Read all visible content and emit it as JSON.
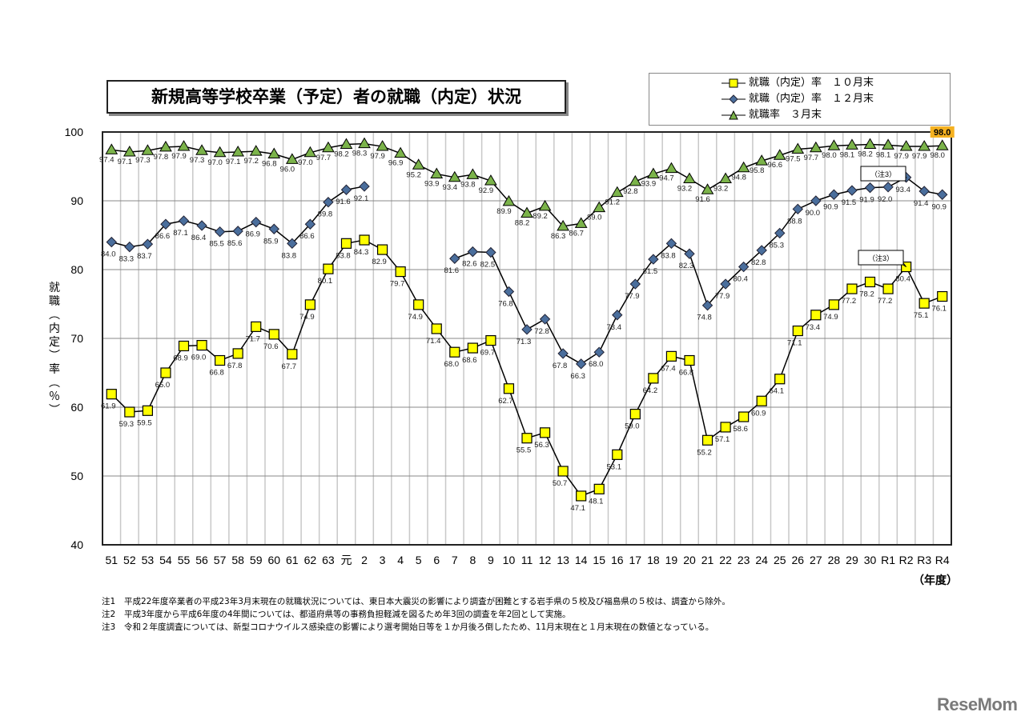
{
  "title": "新規高等学校卒業（予定）者の就職（内定）状況",
  "legend": [
    {
      "label": "就職（内定）率　１０月末",
      "marker": "square",
      "color": "#ffff00"
    },
    {
      "label": "就職（内定）率　１２月末",
      "marker": "diamond",
      "color": "#4a6e9c"
    },
    {
      "label": "就職率　３月末",
      "marker": "triangle",
      "color": "#7bb34a"
    }
  ],
  "y_axis": {
    "label": "就職（内定）率（％）",
    "ticks": [
      "100",
      "90",
      "80",
      "70",
      "60",
      "50",
      "40"
    ]
  },
  "x_axis_unit": "（年度）",
  "callouts": [
    {
      "label": "（注3）",
      "target": "R2 12月末"
    },
    {
      "label": "（注3）",
      "target": "R2 10月末"
    }
  ],
  "highlight_label": "98.0",
  "notes": [
    {
      "key": "注1",
      "text": "平成22年度卒業者の平成23年3月末現在の就職状況については、東日本大震災の影響により調査が困難とする岩手県の５校及び福島県の５校は、調査から除外。"
    },
    {
      "key": "注2",
      "text": "平成3年度から平成6年度の4年間については、都道府県等の事務負担軽減を図るため年3回の調査を年2回として実施。"
    },
    {
      "key": "注3",
      "text": "令和２年度調査については、新型コロナウイルス感染症の影響により選考開始日等を１か月後ろ倒したため、11月末現在と１月末現在の数値となっている。"
    }
  ],
  "watermark": "ReseMom",
  "chart_data": {
    "type": "line",
    "title": "新規高等学校卒業（予定）者の就職（内定）状況",
    "xlabel": "（年度）",
    "ylabel": "就職（内定）率（％）",
    "ylim": [
      40,
      100
    ],
    "yticks": [
      40,
      50,
      60,
      70,
      80,
      90,
      100
    ],
    "grid": true,
    "legend_position": "top-right",
    "categories": [
      "51",
      "52",
      "53",
      "54",
      "55",
      "56",
      "57",
      "58",
      "59",
      "60",
      "61",
      "62",
      "63",
      "元",
      "2",
      "3",
      "4",
      "5",
      "6",
      "7",
      "8",
      "9",
      "10",
      "11",
      "12",
      "13",
      "14",
      "15",
      "16",
      "17",
      "18",
      "19",
      "20",
      "21",
      "22",
      "23",
      "24",
      "25",
      "26",
      "27",
      "28",
      "29",
      "30",
      "R1",
      "R2",
      "R3",
      "R4"
    ],
    "series": [
      {
        "name": "就職（内定）率　１０月末",
        "marker": "square",
        "color": "#ffff00",
        "values": [
          61.9,
          59.3,
          59.5,
          65.0,
          68.9,
          69.0,
          66.8,
          67.8,
          71.7,
          70.6,
          67.7,
          74.9,
          80.1,
          83.8,
          84.3,
          82.9,
          79.7,
          74.9,
          71.4,
          68.0,
          68.6,
          69.7,
          62.7,
          55.5,
          56.3,
          50.7,
          47.1,
          48.1,
          53.1,
          59.0,
          64.2,
          67.4,
          66.8,
          55.2,
          57.1,
          58.6,
          60.9,
          64.1,
          71.1,
          73.4,
          74.9,
          77.2,
          78.2,
          77.2,
          80.4,
          75.1,
          76.1
        ]
      },
      {
        "name": "就職（内定）率　１２月末",
        "marker": "diamond",
        "color": "#4a6e9c",
        "values": [
          84.0,
          83.3,
          83.7,
          86.6,
          87.1,
          86.4,
          85.5,
          85.6,
          86.9,
          85.9,
          83.8,
          86.6,
          89.8,
          91.6,
          92.1,
          null,
          null,
          null,
          null,
          81.6,
          82.6,
          82.5,
          76.8,
          71.3,
          72.8,
          67.8,
          66.3,
          68.0,
          73.4,
          77.9,
          81.5,
          83.8,
          82.3,
          74.8,
          77.9,
          80.4,
          82.8,
          85.3,
          88.8,
          90.0,
          90.9,
          91.5,
          91.9,
          92.0,
          93.4,
          91.4,
          90.9
        ]
      },
      {
        "name": "就職率　３月末",
        "marker": "triangle",
        "color": "#7bb34a",
        "values": [
          97.4,
          97.1,
          97.3,
          97.8,
          97.9,
          97.3,
          97.0,
          97.1,
          97.2,
          96.8,
          96.0,
          97.0,
          97.7,
          98.2,
          98.3,
          97.9,
          96.9,
          95.2,
          93.9,
          93.4,
          93.8,
          92.9,
          89.9,
          88.2,
          89.2,
          86.3,
          86.7,
          89.0,
          91.2,
          92.8,
          93.9,
          94.7,
          93.2,
          91.6,
          93.2,
          94.8,
          95.8,
          96.6,
          97.5,
          97.7,
          98.0,
          98.1,
          98.2,
          98.1,
          97.9,
          97.9,
          98.0
        ]
      }
    ],
    "annotations": [
      "（注3） R2",
      "98.0 highlighted (R4 3月末)"
    ]
  }
}
